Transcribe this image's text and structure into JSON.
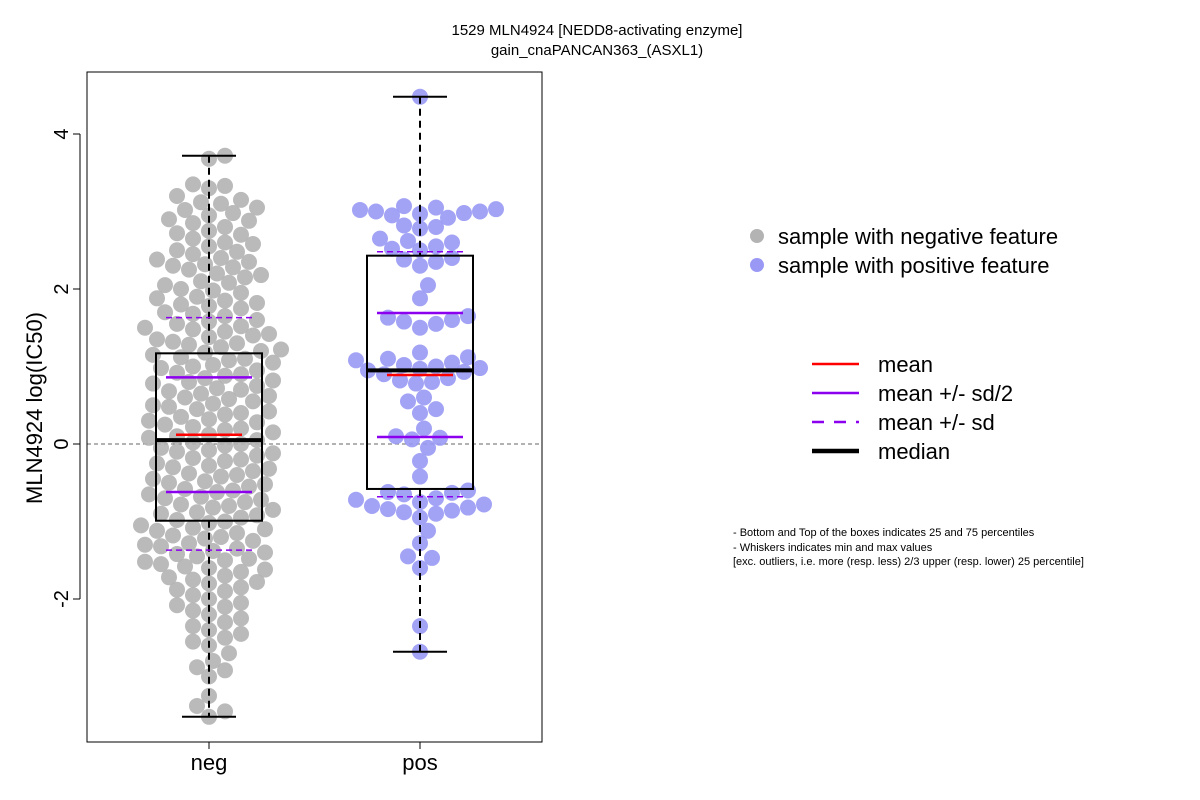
{
  "chart_data": {
    "type": "scatter",
    "subtype": "boxplot-beeswarm",
    "title": "1529 MLN4924 [NEDD8-activating enzyme]",
    "subtitle": "gain_cnaPANCAN363_(ASXL1)",
    "xlabel": "",
    "ylabel": "MLN4924 log(IC50)",
    "ylim": [
      -3.85,
      4.8
    ],
    "yticks": [
      -2,
      0,
      2,
      4
    ],
    "ytick_labels": [
      "-2",
      "0",
      "2",
      "4"
    ],
    "reference_line": 0,
    "categories": [
      "neg",
      "pos"
    ],
    "colors": {
      "neg": "#b3b3b3",
      "pos": "#9999f5",
      "mean": "#ff0000",
      "sd": "#8b00ee",
      "median": "#000000"
    },
    "groups": [
      {
        "name": "neg",
        "stats": {
          "whisker_min": -3.52,
          "q1": -0.99,
          "median": 0.05,
          "q3": 1.17,
          "whisker_max": 3.72,
          "mean": 0.12,
          "mean_minus_half_sd": -0.62,
          "mean_plus_half_sd": 0.86,
          "mean_minus_sd": -1.37,
          "mean_plus_sd": 1.63
        },
        "values": [
          3.72,
          3.68,
          3.35,
          3.33,
          3.3,
          3.2,
          3.15,
          3.12,
          3.1,
          3.05,
          3.02,
          2.98,
          2.95,
          2.9,
          2.88,
          2.85,
          2.8,
          2.75,
          2.72,
          2.7,
          2.65,
          2.6,
          2.58,
          2.55,
          2.5,
          2.48,
          2.45,
          2.4,
          2.38,
          2.35,
          2.32,
          2.3,
          2.28,
          2.25,
          2.2,
          2.18,
          2.15,
          2.1,
          2.08,
          2.05,
          2.0,
          1.98,
          1.95,
          1.9,
          1.88,
          1.85,
          1.82,
          1.8,
          1.78,
          1.75,
          1.7,
          1.68,
          1.65,
          1.6,
          1.58,
          1.55,
          1.52,
          1.5,
          1.48,
          1.45,
          1.42,
          1.4,
          1.38,
          1.35,
          1.32,
          1.3,
          1.28,
          1.25,
          1.22,
          1.2,
          1.18,
          1.15,
          1.12,
          1.1,
          1.08,
          1.05,
          1.02,
          1.0,
          0.98,
          0.95,
          0.92,
          0.9,
          0.88,
          0.85,
          0.82,
          0.8,
          0.78,
          0.75,
          0.72,
          0.7,
          0.68,
          0.65,
          0.62,
          0.6,
          0.58,
          0.55,
          0.52,
          0.5,
          0.48,
          0.45,
          0.42,
          0.4,
          0.38,
          0.35,
          0.32,
          0.3,
          0.28,
          0.25,
          0.22,
          0.2,
          0.18,
          0.15,
          0.12,
          0.1,
          0.08,
          0.05,
          0.02,
          0.0,
          -0.02,
          -0.05,
          -0.08,
          -0.1,
          -0.12,
          -0.15,
          -0.18,
          -0.2,
          -0.22,
          -0.25,
          -0.28,
          -0.3,
          -0.32,
          -0.35,
          -0.38,
          -0.4,
          -0.42,
          -0.45,
          -0.48,
          -0.5,
          -0.52,
          -0.55,
          -0.58,
          -0.6,
          -0.62,
          -0.65,
          -0.68,
          -0.7,
          -0.72,
          -0.75,
          -0.78,
          -0.8,
          -0.82,
          -0.85,
          -0.88,
          -0.9,
          -0.92,
          -0.95,
          -0.98,
          -1.0,
          -1.02,
          -1.05,
          -1.08,
          -1.1,
          -1.12,
          -1.15,
          -1.18,
          -1.2,
          -1.22,
          -1.25,
          -1.28,
          -1.3,
          -1.32,
          -1.35,
          -1.38,
          -1.4,
          -1.42,
          -1.45,
          -1.48,
          -1.5,
          -1.52,
          -1.55,
          -1.58,
          -1.6,
          -1.62,
          -1.65,
          -1.7,
          -1.72,
          -1.75,
          -1.78,
          -1.8,
          -1.85,
          -1.88,
          -1.9,
          -1.95,
          -2.0,
          -2.05,
          -2.08,
          -2.1,
          -2.15,
          -2.2,
          -2.25,
          -2.3,
          -2.35,
          -2.4,
          -2.45,
          -2.5,
          -2.55,
          -2.6,
          -2.7,
          -2.8,
          -2.88,
          -2.92,
          -3.0,
          -3.25,
          -3.38,
          -3.45,
          -3.52
        ],
        "approx_count_note": "subsample"
      },
      {
        "name": "pos",
        "stats": {
          "whisker_min": -2.68,
          "q1": -0.58,
          "median": 0.95,
          "q3": 2.43,
          "whisker_max": 4.48,
          "mean": 0.89,
          "mean_minus_half_sd": 0.09,
          "mean_plus_half_sd": 1.69,
          "mean_minus_sd": -0.68,
          "mean_plus_sd": 2.48
        },
        "values": [
          4.48,
          3.07,
          3.05,
          3.03,
          3.02,
          3.0,
          3.0,
          2.98,
          2.97,
          2.95,
          2.92,
          2.82,
          2.8,
          2.78,
          2.65,
          2.62,
          2.6,
          2.55,
          2.52,
          2.5,
          2.4,
          2.38,
          2.35,
          2.3,
          2.05,
          1.88,
          1.65,
          1.63,
          1.6,
          1.58,
          1.55,
          1.5,
          1.18,
          1.12,
          1.1,
          1.08,
          1.05,
          1.02,
          1.0,
          0.98,
          0.97,
          0.95,
          0.93,
          0.9,
          0.85,
          0.82,
          0.8,
          0.78,
          0.6,
          0.55,
          0.45,
          0.4,
          0.2,
          0.1,
          0.08,
          0.06,
          -0.05,
          -0.22,
          -0.42,
          -0.6,
          -0.62,
          -0.63,
          -0.65,
          -0.7,
          -0.72,
          -0.75,
          -0.78,
          -0.8,
          -0.82,
          -0.84,
          -0.86,
          -0.88,
          -0.9,
          -0.95,
          -1.12,
          -1.28,
          -1.45,
          -1.47,
          -1.6,
          -2.35,
          -2.68
        ]
      }
    ],
    "legend": {
      "placement": "right",
      "points": [
        {
          "label": "sample with negative feature",
          "color": "#b3b3b3"
        },
        {
          "label": "sample with positive feature",
          "color": "#9999f5"
        }
      ],
      "lines": [
        {
          "label": "mean",
          "color": "#ff0000",
          "style": "solid"
        },
        {
          "label": "mean +/- sd/2",
          "color": "#8b00ee",
          "style": "solid"
        },
        {
          "label": "mean +/- sd",
          "color": "#8b00ee",
          "style": "dashed"
        },
        {
          "label": "median",
          "color": "#000000",
          "style": "bold"
        }
      ]
    },
    "notes": [
      "- Bottom and Top of the boxes indicates 25 and 75 percentiles",
      "- Whiskers indicates min and max values",
      "[exc. outliers, i.e. more (resp. less) 2/3 upper (resp. lower) 25 percentile]"
    ]
  }
}
